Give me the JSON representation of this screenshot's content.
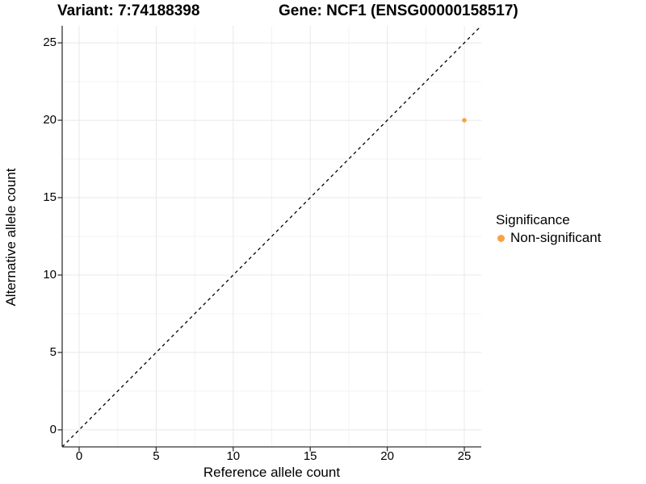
{
  "title": {
    "left": "Variant: 7:74188398",
    "right": "Gene: NCF1 (ENSG00000158517)"
  },
  "chart_data": {
    "type": "scatter",
    "xlabel": "Reference allele count",
    "ylabel": "Alternative allele count",
    "xticks": [
      0,
      5,
      10,
      15,
      20,
      25
    ],
    "yticks": [
      0,
      5,
      10,
      15,
      20,
      25
    ],
    "xlim": [
      -1.1,
      26.1
    ],
    "ylim": [
      -1.1,
      26.1
    ],
    "grid": "major+minor",
    "legend_position": "right",
    "reference_line": {
      "slope": 1,
      "intercept": 0,
      "style": "dashed",
      "color": "#000000"
    },
    "series": [
      {
        "name": "Non-significant",
        "color": "#F9A242",
        "points": [
          {
            "x": 25,
            "y": 20
          }
        ]
      }
    ],
    "colors": {
      "axis_line": "#333333",
      "major_grid": "#E8E8E8",
      "minor_grid": "#F3F3F3",
      "tick_text": "#000000"
    }
  },
  "legend": {
    "title": "Significance",
    "items": [
      {
        "label": "Non-significant",
        "color": "#F9A242"
      }
    ]
  }
}
